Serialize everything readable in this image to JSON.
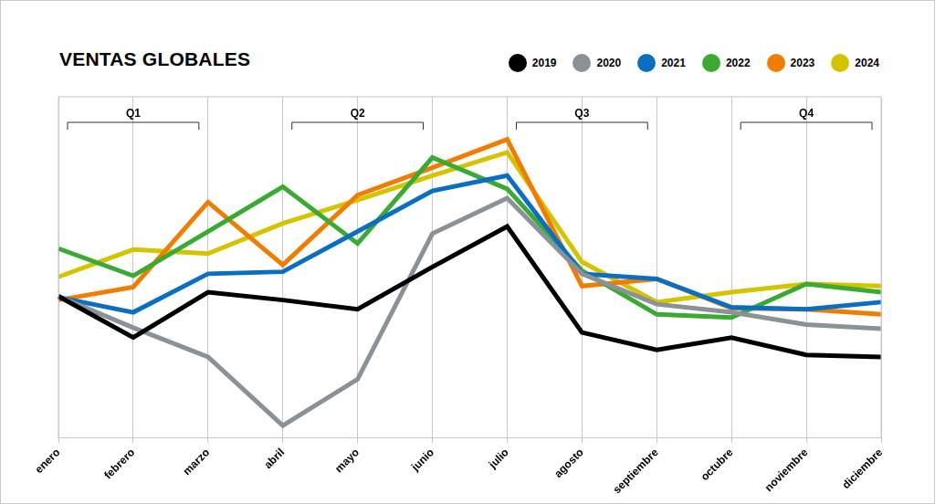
{
  "chart_data": {
    "type": "line",
    "title": "VENTAS GLOBALES",
    "categories": [
      "enero",
      "febrero",
      "marzo",
      "abril",
      "mayo",
      "junio",
      "julio",
      "agosto",
      "septiembre",
      "octubre",
      "noviembre",
      "diciembre"
    ],
    "series": [
      {
        "name": "2019",
        "color": "#000000",
        "values": [
          41.5,
          29.4,
          42.7,
          40.4,
          37.7,
          50.1,
          62.0,
          30.9,
          25.8,
          29.4,
          24.3,
          23.7
        ]
      },
      {
        "name": "2020",
        "color": "#8a9298",
        "values": [
          41.5,
          32.3,
          23.7,
          3.6,
          17.2,
          59.9,
          70.3,
          48.1,
          39.2,
          36.8,
          33.2,
          32.0
        ]
      },
      {
        "name": "2021",
        "color": "#0a6fc2",
        "values": [
          41.2,
          36.8,
          48.1,
          48.7,
          60.5,
          72.4,
          76.9,
          48.1,
          46.6,
          38.3,
          37.7,
          39.8
        ]
      },
      {
        "name": "2022",
        "color": "#3aaa35",
        "values": [
          55.5,
          47.5,
          60.5,
          73.6,
          57.0,
          82.2,
          73.0,
          49.0,
          36.2,
          35.3,
          45.1,
          42.7
        ]
      },
      {
        "name": "2023",
        "color": "#f07d00",
        "values": [
          40.4,
          44.2,
          69.1,
          50.7,
          71.2,
          79.2,
          87.5,
          44.5,
          46.6,
          38.0,
          37.7,
          36.2
        ]
      },
      {
        "name": "2024",
        "color": "#d4c400",
        "values": [
          47.2,
          55.2,
          54.0,
          62.9,
          69.7,
          76.9,
          83.7,
          51.6,
          39.8,
          42.7,
          45.1,
          44.5
        ]
      }
    ],
    "annotations": [
      {
        "text": "Q1",
        "from": "enero",
        "to": "marzo"
      },
      {
        "text": "Q2",
        "from": "abril",
        "to": "junio"
      },
      {
        "text": "Q3",
        "from": "julio",
        "to": "septiembre"
      },
      {
        "text": "Q4",
        "from": "octubre",
        "to": "diciembre"
      }
    ],
    "ylim": [
      0,
      100
    ],
    "grid": "x",
    "legend": "top-right",
    "tick_labels": "x"
  }
}
